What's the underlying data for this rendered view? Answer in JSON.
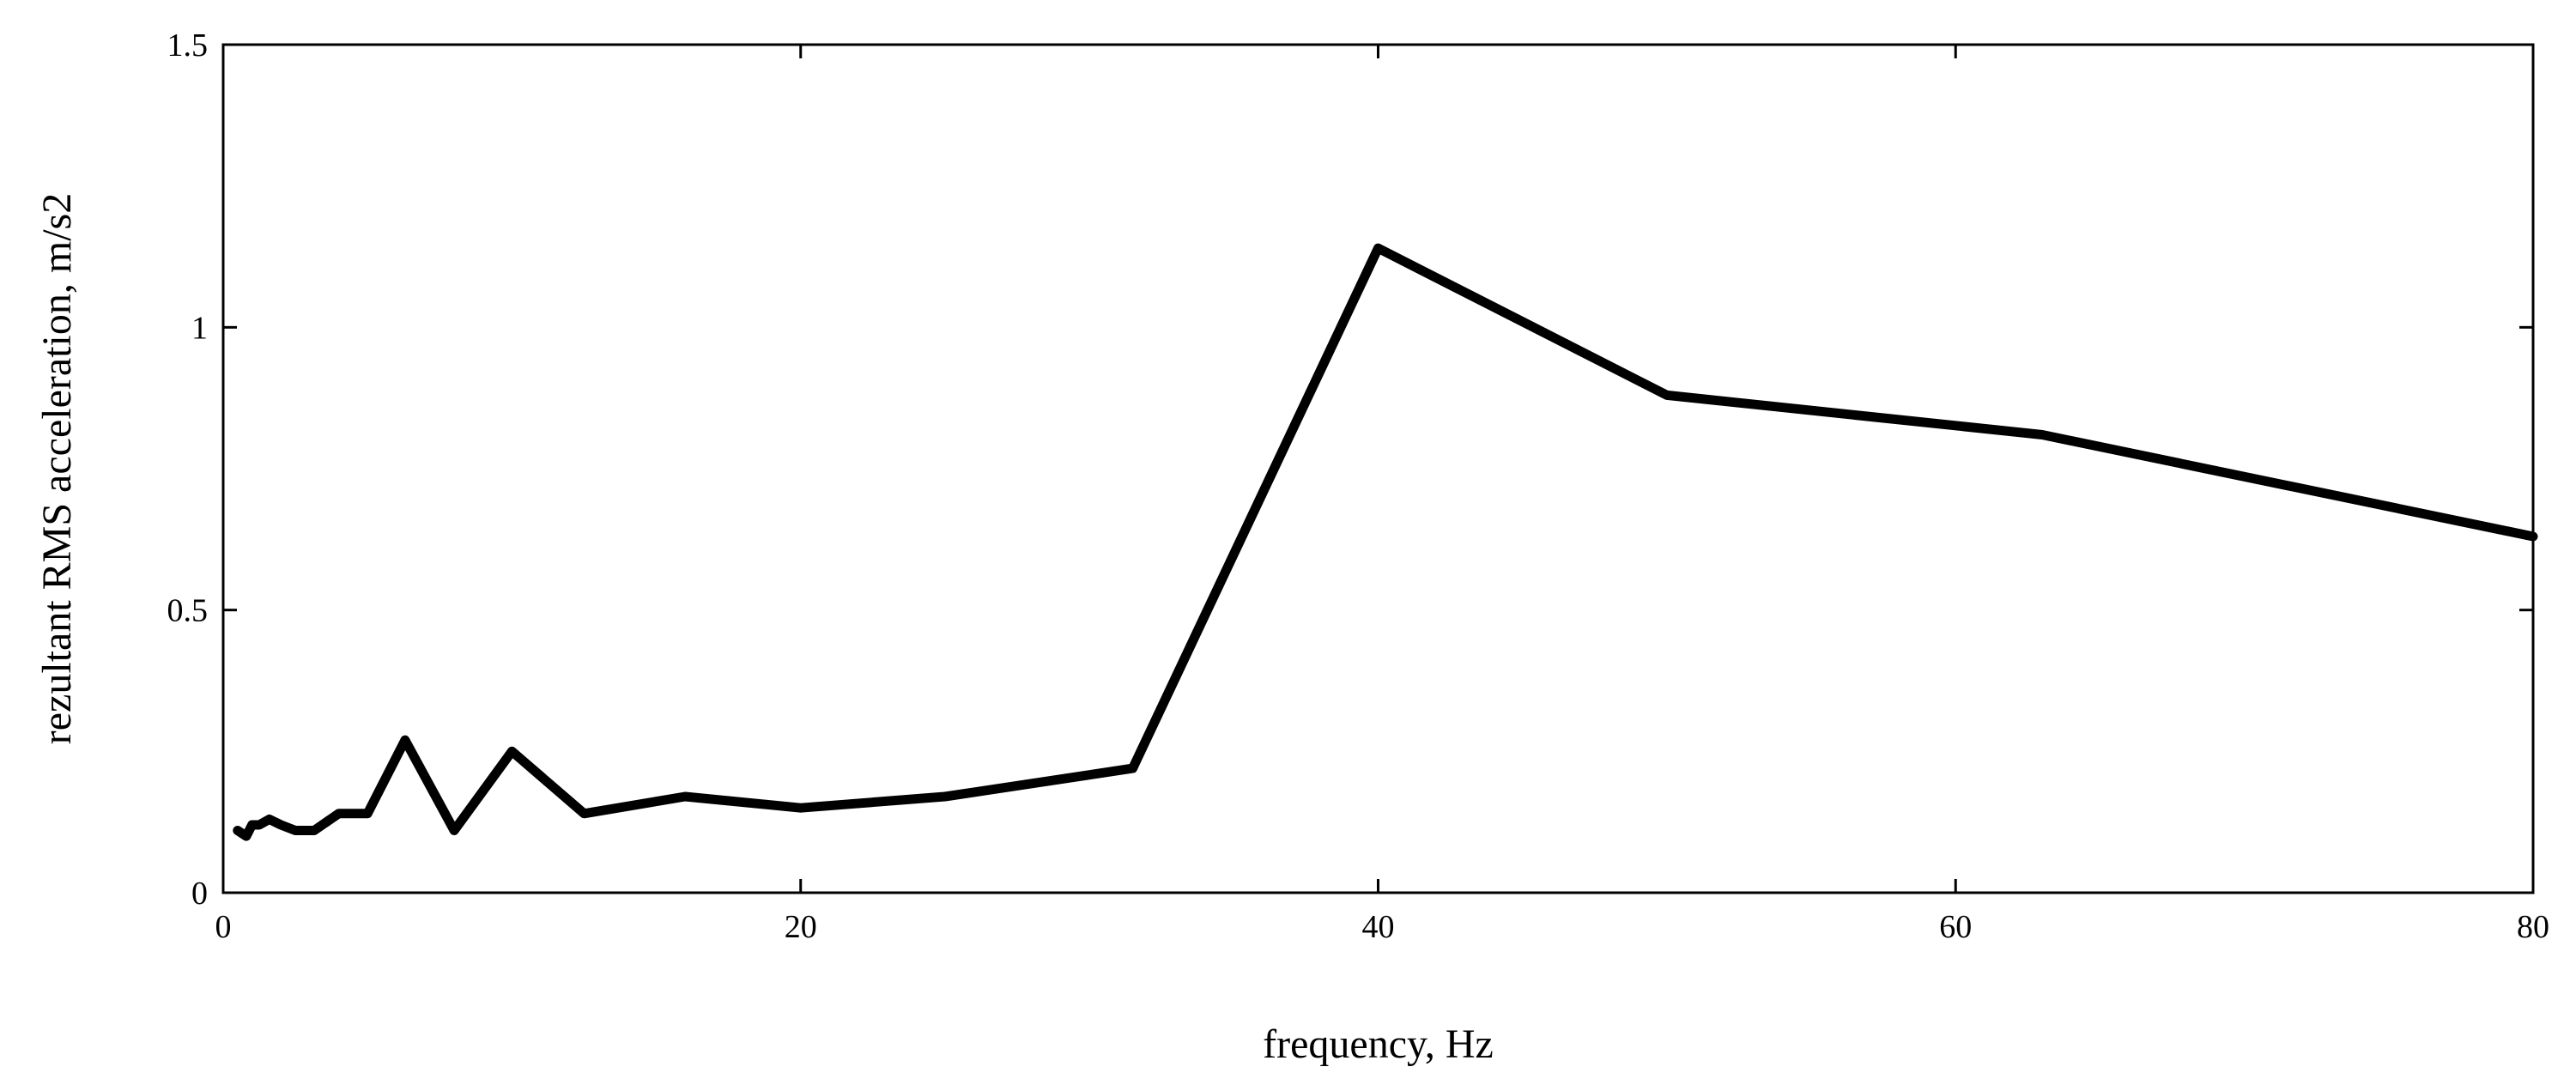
{
  "chart_data": {
    "type": "line",
    "title": "",
    "xlabel": "frequency, Hz",
    "ylabel": "rezultant RMS acceleration, m/s2",
    "xlim": [
      0,
      80
    ],
    "ylim": [
      0,
      1.5
    ],
    "xticks": [
      0,
      20,
      40,
      60,
      80
    ],
    "yticks": [
      0,
      0.5,
      1,
      1.5
    ],
    "xtick_labels": [
      "0",
      "20",
      "40",
      "60",
      "80"
    ],
    "ytick_labels": [
      "0",
      "0.5",
      "1",
      "1.5"
    ],
    "grid": false,
    "legend": "none",
    "series": [
      {
        "color": "#000000",
        "x": [
          0.5,
          0.8,
          1.0,
          1.25,
          1.6,
          2.0,
          2.5,
          3.15,
          4.0,
          5.0,
          6.3,
          8.0,
          10.0,
          12.5,
          16.0,
          20.0,
          25.0,
          31.5,
          40.0,
          50.0,
          63.0,
          80.0
        ],
        "y": [
          0.11,
          0.1,
          0.12,
          0.12,
          0.13,
          0.12,
          0.11,
          0.11,
          0.14,
          0.14,
          0.27,
          0.11,
          0.25,
          0.14,
          0.17,
          0.15,
          0.17,
          0.22,
          1.14,
          0.88,
          0.81,
          0.63
        ]
      }
    ]
  }
}
